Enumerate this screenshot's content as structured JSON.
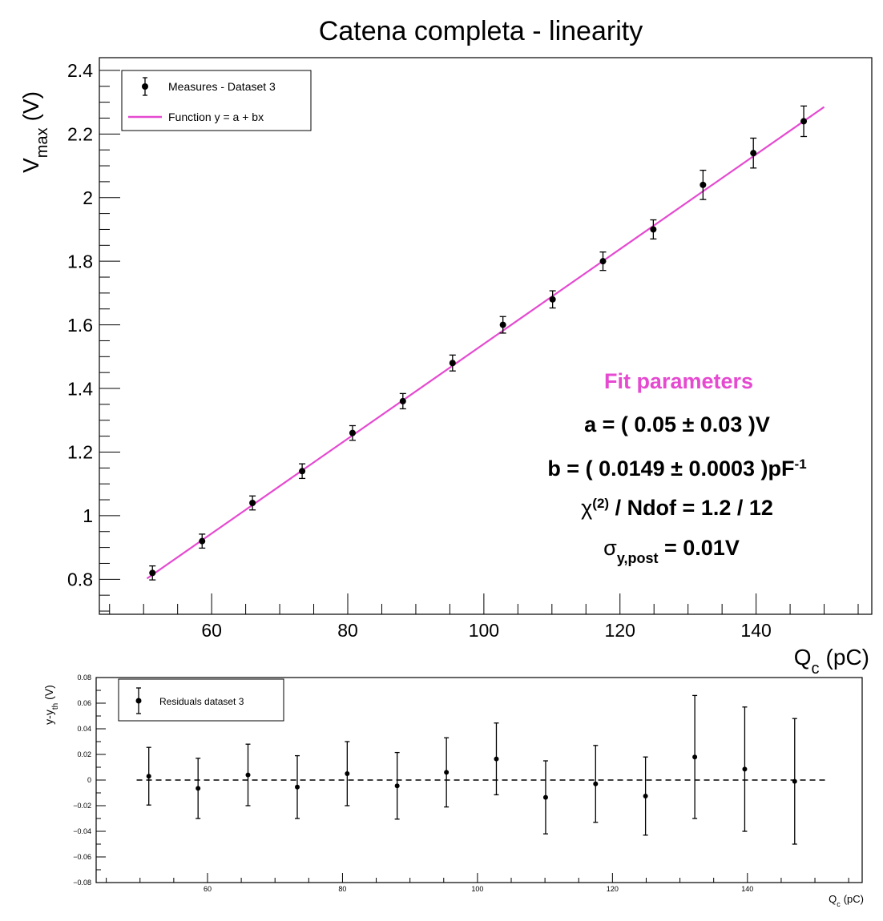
{
  "chart_data": [
    {
      "type": "scatter",
      "title": "Catena completa - linearity",
      "xlabel": {
        "main": "Q",
        "sub": "c",
        "unit": "(pC)"
      },
      "ylabel": {
        "main": "V",
        "sub": "max",
        "unit": "(V)"
      },
      "xlim": [
        43.5,
        157
      ],
      "ylim": [
        0.69,
        2.44
      ],
      "x_ticks": [
        60,
        80,
        100,
        120,
        140
      ],
      "x_tick_labels": [
        "60",
        "80",
        "100",
        "120",
        "140"
      ],
      "y_ticks": [
        0.8,
        1.0,
        1.2,
        1.4,
        1.6,
        1.8,
        2.0,
        2.2,
        2.4
      ],
      "y_tick_labels": [
        "0.8",
        "1",
        "1.2",
        "1.4",
        "1.6",
        "1.8",
        "2",
        "2.2",
        "2.4"
      ],
      "grid": false,
      "legend": {
        "position": "top-left",
        "entries": [
          "Measures - Dataset 3",
          "Function y = a + bx"
        ]
      },
      "series": [
        {
          "name": "Measures - Dataset 3",
          "kind": "points-with-errorbars",
          "color": "#000000",
          "x": [
            51.3,
            58.6,
            66.0,
            73.3,
            80.7,
            88.1,
            95.4,
            102.8,
            110.1,
            117.5,
            124.9,
            132.2,
            139.6,
            147.0
          ],
          "y": [
            0.82,
            0.92,
            1.04,
            1.14,
            1.26,
            1.36,
            1.48,
            1.6,
            1.68,
            1.8,
            1.9,
            2.04,
            2.14,
            2.24
          ],
          "yerr": [
            0.022,
            0.022,
            0.022,
            0.023,
            0.023,
            0.024,
            0.025,
            0.026,
            0.027,
            0.029,
            0.03,
            0.046,
            0.047,
            0.048
          ]
        },
        {
          "name": "Function y = a + bx",
          "kind": "line",
          "color": "#e54ad0",
          "a": 0.05,
          "b": 0.0149,
          "x_range": [
            50.5,
            150
          ]
        }
      ],
      "annotation": {
        "heading": "Fit parameters",
        "heading_color": "#e54ad0",
        "line_a": "a = (  0.05 ± 0.03 )V",
        "line_b_main": "b = ( 0.0149 ±  0.0003 )pF",
        "line_b_sup": "-1",
        "line_chi_symbol": "χ",
        "line_chi_sup": "(2)",
        "line_chi_rest": " / Ndof = 1.2 / 12",
        "line_sigma_symbol": "σ",
        "line_sigma_sub": "y,post",
        "line_sigma_rest": " = 0.01V"
      }
    },
    {
      "type": "scatter",
      "title": "",
      "xlabel": {
        "main": "Q",
        "sub": "c",
        "unit": "(pC)"
      },
      "ylabel": {
        "main": "y-y",
        "sub": "th",
        "unit": "(V)"
      },
      "xlim": [
        43.5,
        157
      ],
      "ylim": [
        -0.08,
        0.08
      ],
      "x_ticks": [
        60,
        80,
        100,
        120,
        140
      ],
      "x_tick_labels": [
        "60",
        "80",
        "100",
        "120",
        "140"
      ],
      "y_ticks": [
        -0.08,
        -0.06,
        -0.04,
        -0.02,
        0,
        0.02,
        0.04,
        0.06,
        0.08
      ],
      "y_tick_labels": [
        "−0.08",
        "−0.06",
        "−0.04",
        "−0.02",
        "0",
        "0.02",
        "0.04",
        "0.06",
        "0.08"
      ],
      "grid": false,
      "legend": {
        "position": "top-left",
        "entries": [
          "Residuals dataset 3"
        ]
      },
      "reference_line": {
        "y": 0,
        "style": "dashed",
        "x_range": [
          49.5,
          152
        ]
      },
      "series": [
        {
          "name": "Residuals dataset 3",
          "kind": "points-with-errorbars",
          "color": "#000000",
          "x": [
            51.3,
            58.6,
            66.0,
            73.3,
            80.7,
            88.1,
            95.4,
            102.8,
            110.1,
            117.5,
            124.9,
            132.2,
            139.6,
            147.0
          ],
          "y": [
            0.003,
            -0.0065,
            0.004,
            -0.0055,
            0.005,
            -0.0045,
            0.006,
            0.0165,
            -0.0135,
            -0.003,
            -0.0125,
            0.018,
            0.0085,
            -0.001
          ],
          "yerr": [
            0.0225,
            0.0235,
            0.024,
            0.0245,
            0.025,
            0.026,
            0.027,
            0.028,
            0.0285,
            0.03,
            0.0305,
            0.048,
            0.0485,
            0.049
          ]
        }
      ]
    }
  ]
}
